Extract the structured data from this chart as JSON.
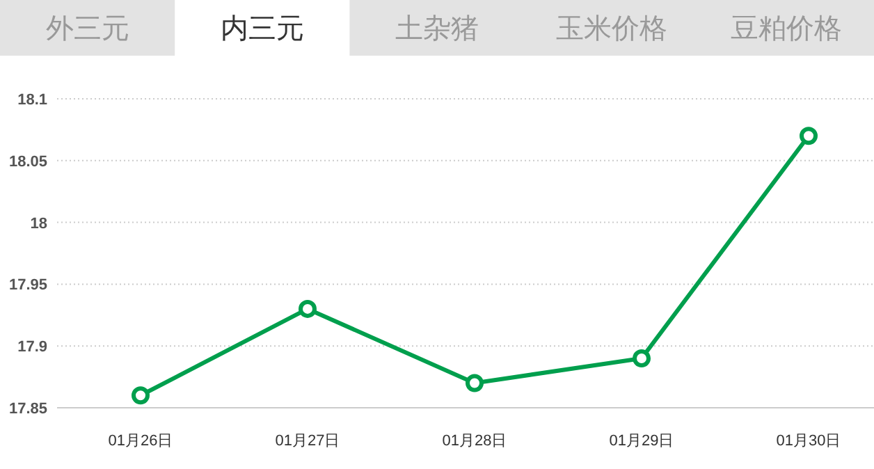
{
  "chart_data": {
    "type": "line",
    "title": "内三元",
    "annotations": [
      "外三元",
      "土杂猪",
      "玉米价格",
      "豆粕价格"
    ],
    "categories": [
      "01月26日",
      "01月27日",
      "01月28日",
      "01月29日",
      "01月30日"
    ],
    "series": [
      {
        "color": "#009f4d",
        "values": [
          17.86,
          17.93,
          17.87,
          17.89,
          18.07
        ]
      }
    ],
    "ylim": [
      17.85,
      18.1
    ],
    "yticks": [
      17.85,
      17.9,
      17.95,
      18,
      18.05,
      18.1
    ],
    "grid": "y",
    "marker": "circle",
    "line_style": "solid"
  }
}
